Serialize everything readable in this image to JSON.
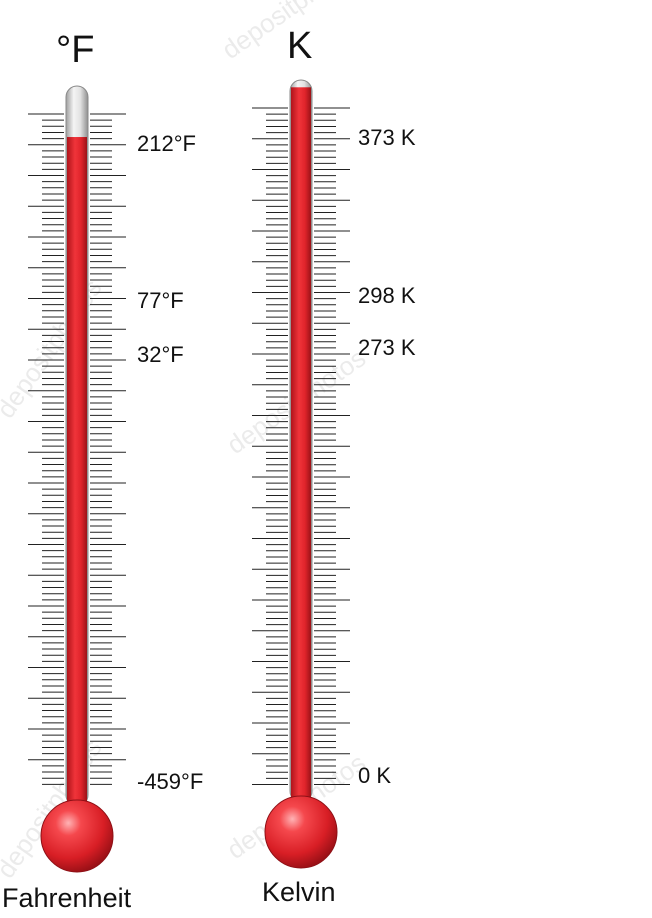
{
  "watermark": "depositphotos",
  "colors": {
    "mercury": "#e0242b",
    "mercury_dark": "#a8141a",
    "tube": "#d9d9d9",
    "tube_outline": "#9a9a9a",
    "ticks": "#222222"
  },
  "thermometers": [
    {
      "id": "fahrenheit",
      "symbol": "°F",
      "caption": "Fahrenheit",
      "fill_level": 0.93,
      "labels": [
        {
          "text": "212°F",
          "value": 212
        },
        {
          "text": "77°F",
          "value": 77
        },
        {
          "text": "32°F",
          "value": 32
        },
        {
          "text": "-459°F",
          "value": -459
        }
      ]
    },
    {
      "id": "kelvin",
      "symbol": "K",
      "caption": "Kelvin",
      "fill_level": 0.99,
      "labels": [
        {
          "text": "373 K",
          "value": 373
        },
        {
          "text": "298 K",
          "value": 298
        },
        {
          "text": "273 K",
          "value": 273
        },
        {
          "text": "0 K",
          "value": 0
        }
      ]
    }
  ]
}
